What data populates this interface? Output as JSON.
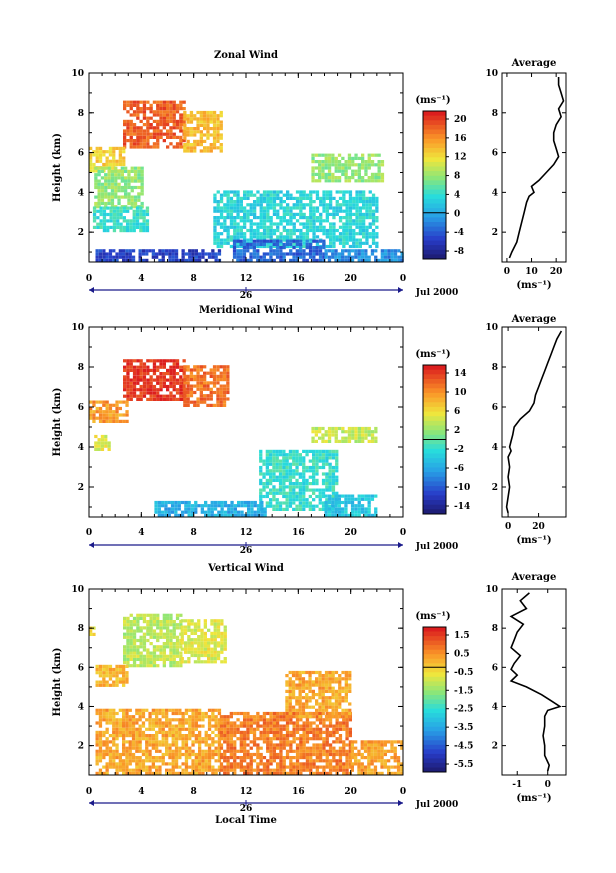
{
  "chart_data": [
    {
      "type": "heatmap",
      "title": "Zonal Wind",
      "ylabel": "Height (km)",
      "y_ticks": [
        "2",
        "4",
        "6",
        "8",
        "10"
      ],
      "x_ticks": [
        "0",
        "4",
        "8",
        "12",
        "16",
        "20",
        "0"
      ],
      "date_label": "26",
      "month_label": "Jul 2000",
      "unit_label": "(ms⁻¹)",
      "colorbar_ticks": [
        "20",
        "16",
        "12",
        "8",
        "4",
        "0",
        "-4",
        "-8"
      ],
      "colorbar_range": [
        -10,
        22
      ],
      "y_range": [
        0.5,
        10
      ],
      "x_range": [
        0,
        24
      ],
      "blobs": [
        {
          "x0": 2.6,
          "x1": 7.2,
          "y0": 6.2,
          "y1": 8.6,
          "v": 19
        },
        {
          "x0": 7.2,
          "x1": 10.2,
          "y0": 6.0,
          "y1": 8.0,
          "v": 14
        },
        {
          "x0": 0.0,
          "x1": 2.6,
          "y0": 5.0,
          "y1": 6.2,
          "v": 13
        },
        {
          "x0": 0.4,
          "x1": 4.0,
          "y0": 3.2,
          "y1": 5.2,
          "v": 8
        },
        {
          "x0": 0.3,
          "x1": 4.5,
          "y0": 2.0,
          "y1": 3.2,
          "v": 4
        },
        {
          "x0": 9.5,
          "x1": 22.0,
          "y0": 1.2,
          "y1": 4.0,
          "v": 3
        },
        {
          "x0": 17.0,
          "x1": 22.5,
          "y0": 4.5,
          "y1": 5.8,
          "v": 8
        },
        {
          "x0": 11.0,
          "x1": 18.0,
          "y0": 0.5,
          "y1": 1.5,
          "v": -4
        },
        {
          "x0": 0.5,
          "x1": 10.0,
          "y0": 0.5,
          "y1": 1.0,
          "v": -6
        },
        {
          "x0": 18.0,
          "x1": 24.0,
          "y0": 0.5,
          "y1": 1.0,
          "v": -2
        }
      ],
      "profile": {
        "title": "Average",
        "xlabel": "(ms⁻¹)",
        "x_ticks": [
          "0",
          "10",
          "20"
        ],
        "x_range": [
          -2,
          24
        ],
        "y_ticks": [
          "2",
          "4",
          "6",
          "8",
          "10"
        ],
        "heights": [
          0.7,
          1.0,
          1.5,
          2.0,
          2.5,
          3.0,
          3.5,
          3.8,
          4.0,
          4.3,
          4.6,
          5.0,
          5.4,
          5.8,
          6.2,
          6.6,
          7.0,
          7.4,
          7.8,
          8.2,
          8.6,
          9.0,
          9.4,
          9.8
        ],
        "values": [
          1,
          2,
          4,
          5,
          6,
          7,
          8,
          9,
          11,
          10,
          13,
          16,
          19,
          21,
          20,
          19,
          19,
          20,
          22,
          21,
          23,
          22,
          21,
          21
        ]
      }
    },
    {
      "type": "heatmap",
      "title": "Meridional Wind",
      "ylabel": "Height (km)",
      "y_ticks": [
        "2",
        "4",
        "6",
        "8",
        "10"
      ],
      "x_ticks": [
        "0",
        "4",
        "8",
        "12",
        "16",
        "20",
        "0"
      ],
      "date_label": "26",
      "month_label": "Jul 2000",
      "unit_label": "(ms⁻¹)",
      "colorbar_ticks": [
        "14",
        "10",
        "6",
        "2",
        "-2",
        "-6",
        "-10",
        "-14"
      ],
      "colorbar_range": [
        -16,
        16
      ],
      "y_range": [
        0.5,
        10
      ],
      "x_range": [
        0,
        24
      ],
      "blobs": [
        {
          "x0": 2.6,
          "x1": 7.2,
          "y0": 6.3,
          "y1": 8.3,
          "v": 15
        },
        {
          "x0": 7.2,
          "x1": 10.5,
          "y0": 6.0,
          "y1": 8.0,
          "v": 12
        },
        {
          "x0": 0.0,
          "x1": 2.8,
          "y0": 5.2,
          "y1": 6.2,
          "v": 10
        },
        {
          "x0": 0.4,
          "x1": 1.5,
          "y0": 3.8,
          "y1": 4.6,
          "v": 5
        },
        {
          "x0": 13.0,
          "x1": 19.0,
          "y0": 0.8,
          "y1": 3.8,
          "v": -2
        },
        {
          "x0": 5.0,
          "x1": 13.5,
          "y0": 0.5,
          "y1": 1.3,
          "v": -6
        },
        {
          "x0": 17.0,
          "x1": 22.0,
          "y0": 4.2,
          "y1": 5.0,
          "v": 4
        },
        {
          "x0": 18.0,
          "x1": 22.0,
          "y0": 0.5,
          "y1": 1.5,
          "v": -4
        }
      ],
      "profile": {
        "title": "Average",
        "xlabel": "(ms⁻¹)",
        "x_ticks": [
          "0",
          "20"
        ],
        "x_range": [
          -4,
          38
        ],
        "y_ticks": [
          "2",
          "4",
          "6",
          "8",
          "10"
        ],
        "heights": [
          0.7,
          1.0,
          1.5,
          2.0,
          2.5,
          3.0,
          3.5,
          3.8,
          4.0,
          4.3,
          4.6,
          5.0,
          5.4,
          5.8,
          6.2,
          6.6,
          7.0,
          7.4,
          7.8,
          8.2,
          8.6,
          9.0,
          9.4,
          9.8
        ],
        "values": [
          0,
          -1,
          0,
          1,
          0,
          1,
          0,
          2,
          1,
          2,
          3,
          4,
          8,
          14,
          17,
          18,
          20,
          22,
          24,
          26,
          28,
          30,
          32,
          35
        ]
      }
    },
    {
      "type": "heatmap",
      "title": "Vertical Wind",
      "ylabel": "Height (km)",
      "xlabel": "Local Time",
      "y_ticks": [
        "2",
        "4",
        "6",
        "8",
        "10"
      ],
      "x_ticks": [
        "0",
        "4",
        "8",
        "12",
        "16",
        "20",
        "0"
      ],
      "date_label": "26",
      "month_label": "Jul 2000",
      "unit_label": "(ms⁻¹)",
      "colorbar_ticks": [
        "1.5",
        "0.5",
        "-0.5",
        "-1.5",
        "-2.5",
        "-3.5",
        "-4.5",
        "-5.5"
      ],
      "colorbar_range": [
        -6.5,
        2.5
      ],
      "y_range": [
        0.5,
        10
      ],
      "x_range": [
        0,
        24
      ],
      "blobs": [
        {
          "x0": 2.6,
          "x1": 7.0,
          "y0": 6.0,
          "y1": 8.6,
          "v": -1.0
        },
        {
          "x0": 7.0,
          "x1": 10.5,
          "y0": 6.2,
          "y1": 8.4,
          "v": -0.6
        },
        {
          "x0": 0.0,
          "x1": 0.5,
          "y0": 7.6,
          "y1": 8.0,
          "v": -0.3
        },
        {
          "x0": 0.5,
          "x1": 10.0,
          "y0": 0.5,
          "y1": 3.8,
          "v": 0.6
        },
        {
          "x0": 10.0,
          "x1": 20.0,
          "y0": 0.5,
          "y1": 3.6,
          "v": 1.2
        },
        {
          "x0": 20.0,
          "x1": 24.0,
          "y0": 0.5,
          "y1": 2.2,
          "v": 0.7
        },
        {
          "x0": 15.0,
          "x1": 20.0,
          "y0": 3.4,
          "y1": 5.8,
          "v": 0.6
        },
        {
          "x0": 0.5,
          "x1": 3.0,
          "y0": 5.0,
          "y1": 6.0,
          "v": 0.4
        }
      ],
      "profile": {
        "title": "Average",
        "xlabel": "(ms⁻¹)",
        "x_ticks": [
          "-1",
          "0"
        ],
        "x_range": [
          -1.5,
          0.6
        ],
        "y_ticks": [
          "2",
          "4",
          "6",
          "8",
          "10"
        ],
        "heights": [
          0.7,
          1.0,
          1.5,
          2.0,
          2.5,
          3.0,
          3.5,
          3.8,
          4.0,
          4.3,
          4.6,
          5.0,
          5.3,
          5.6,
          5.9,
          6.2,
          6.6,
          7.0,
          7.4,
          7.8,
          8.2,
          8.6,
          9.0,
          9.4,
          9.8
        ],
        "values": [
          0.0,
          0.05,
          -0.1,
          -0.1,
          -0.15,
          -0.1,
          -0.1,
          0.0,
          0.4,
          0.1,
          -0.2,
          -0.7,
          -1.2,
          -1.0,
          -1.2,
          -1.1,
          -0.9,
          -1.2,
          -1.1,
          -1.0,
          -0.8,
          -1.2,
          -0.7,
          -0.9,
          -0.6
        ]
      }
    }
  ]
}
